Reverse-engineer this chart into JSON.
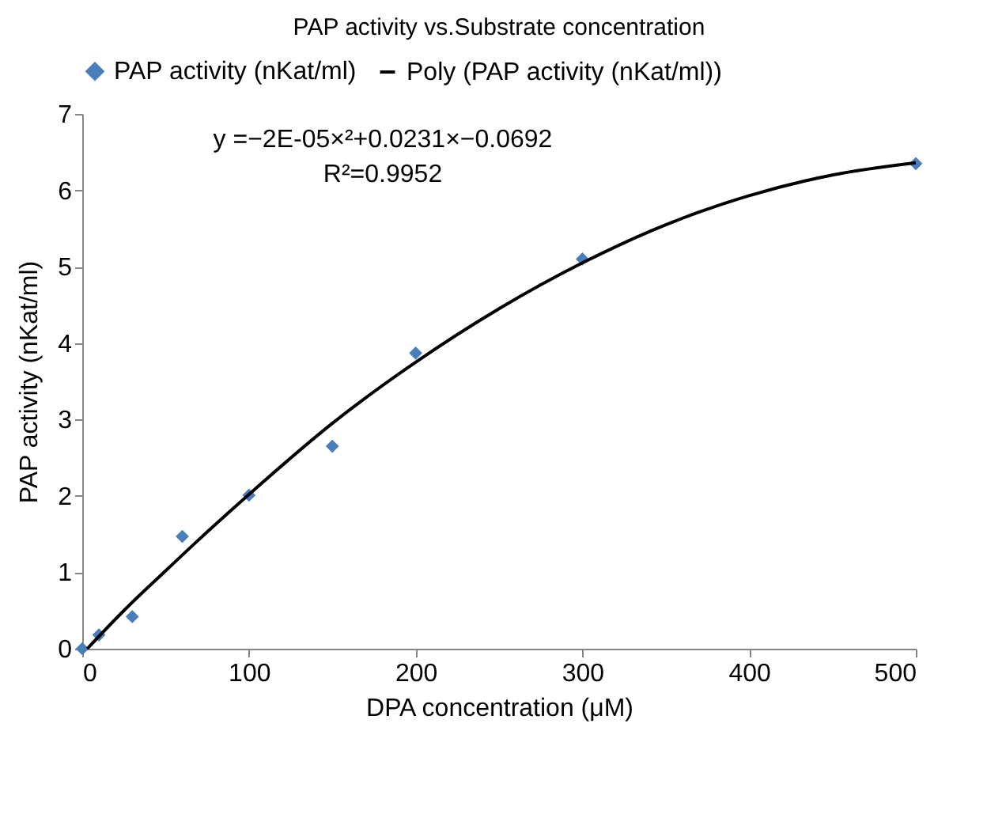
{
  "chart_data": {
    "type": "scatter",
    "title": "PAP activity vs.Substrate concentration",
    "xlabel": "DPA concentration (μM)",
    "ylabel": "PAP activity (nKat/ml)",
    "x": [
      0,
      10,
      30,
      60,
      100,
      150,
      200,
      300,
      500
    ],
    "series": [
      {
        "name": "PAP activity (nKat/ml)",
        "color": "#4a7ebb",
        "marker": "diamond",
        "values": [
          0,
          0.18,
          0.42,
          1.47,
          2.01,
          2.65,
          3.87,
          5.1,
          6.35
        ]
      },
      {
        "name": "Poly (PAP activity (nKat/ml))",
        "type": "line",
        "color": "#000000",
        "marker": "none",
        "x": [
          3,
          25,
          50,
          75,
          100,
          150,
          200,
          250,
          300,
          350,
          400,
          450,
          500
        ],
        "values": [
          0,
          0.5,
          1.02,
          1.53,
          2.02,
          2.95,
          3.75,
          4.45,
          5.05,
          5.55,
          5.93,
          6.2,
          6.36
        ]
      }
    ],
    "xlim": [
      0,
      500
    ],
    "xticks": [
      0,
      100,
      200,
      300,
      400,
      500
    ],
    "ylim": [
      0,
      7
    ],
    "yticks": [
      0,
      1,
      2,
      3,
      4,
      5,
      6,
      7
    ],
    "grid": false,
    "legend": "top",
    "annotations": [
      "y =−2E-05×²+0.0231×−0.0692",
      "R²=0.9952"
    ]
  }
}
